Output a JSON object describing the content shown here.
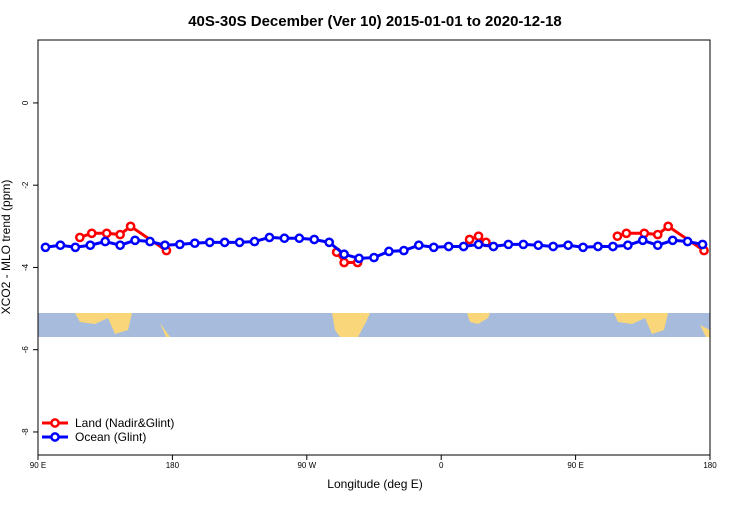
{
  "chart_data": {
    "type": "line",
    "title": "40S-30S December (Ver 10)   2015-01-01 to 2020-12-18",
    "x_label": "Longitude (deg E)",
    "y_label": "XCO2 - MLO trend (ppm)",
    "xlim": [
      90,
      540
    ],
    "ylim": [
      -8.56,
      1.53
    ],
    "xticks": [
      {
        "value": 90,
        "label": "90 E"
      },
      180,
      {
        "value": 270,
        "label": "90 W"
      },
      {
        "value": 360,
        "label": "0"
      },
      {
        "value": 450,
        "label": "90 E"
      },
      {
        "value": 540,
        "label": "180"
      }
    ],
    "yticks": [
      0,
      -2,
      -4,
      -6,
      -8
    ],
    "legend": "bottom-left",
    "series": [
      {
        "name": "Land (Nadir&Glint)",
        "color": "#ff0000",
        "x": [
          118,
          126,
          136,
          145,
          152,
          176,
          null,
          290,
          295,
          304,
          null,
          379,
          385,
          390,
          null,
          478,
          484,
          496,
          505,
          512,
          536
        ],
        "values": [
          -3.27,
          -3.17,
          -3.17,
          -3.2,
          -3.0,
          -3.59,
          null,
          -3.63,
          -3.88,
          -3.88,
          null,
          -3.32,
          -3.24,
          -3.39,
          null,
          -3.24,
          -3.17,
          -3.17,
          -3.2,
          -3.0,
          -3.59
        ]
      },
      {
        "name": "Ocean (Glint)",
        "color": "#0000ff",
        "x": [
          95,
          105,
          115,
          125,
          135,
          145,
          155,
          165,
          175,
          185,
          195,
          205,
          215,
          225,
          235,
          245,
          255,
          265,
          275,
          285,
          295,
          305,
          315,
          325,
          335,
          345,
          355,
          365,
          375,
          385,
          395,
          405,
          415,
          425,
          435,
          445,
          455,
          465,
          475,
          485,
          495,
          505,
          515,
          525,
          535
        ],
        "values": [
          -3.51,
          -3.46,
          -3.51,
          -3.46,
          -3.37,
          -3.46,
          -3.34,
          -3.37,
          -3.46,
          -3.44,
          -3.41,
          -3.39,
          -3.39,
          -3.39,
          -3.37,
          -3.27,
          -3.29,
          -3.29,
          -3.32,
          -3.39,
          -3.68,
          -3.78,
          -3.76,
          -3.61,
          -3.59,
          -3.46,
          -3.51,
          -3.49,
          -3.49,
          -3.44,
          -3.49,
          -3.44,
          -3.44,
          -3.46,
          -3.49,
          -3.46,
          -3.51,
          -3.49,
          -3.49,
          -3.46,
          -3.34,
          -3.46,
          -3.34,
          -3.37,
          -3.44
        ]
      }
    ]
  }
}
